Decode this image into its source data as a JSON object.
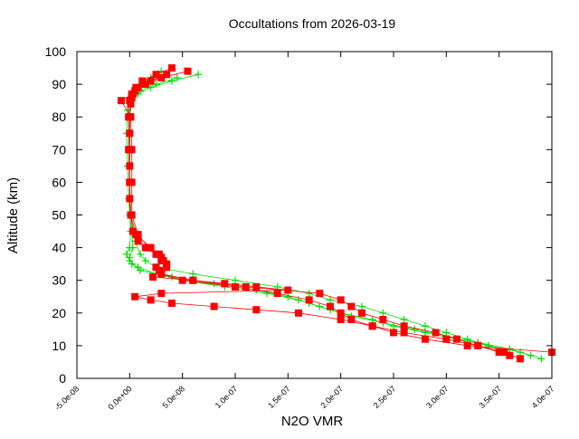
{
  "chart_data": {
    "type": "line",
    "title": "Occultations from 2026-03-19",
    "xlabel": "N2O VMR",
    "ylabel": "Altitude (km)",
    "xlim": [
      -5e-08,
      4e-07
    ],
    "xticks": [
      {
        "value": -5e-08,
        "label": "-5.0e-08"
      },
      {
        "value": 0,
        "label": "0.0e+00"
      },
      {
        "value": 5e-08,
        "label": "5.0e-08"
      },
      {
        "value": 1e-07,
        "label": "1.0e-07"
      },
      {
        "value": 1.5e-07,
        "label": "1.5e-07"
      },
      {
        "value": 2e-07,
        "label": "2.0e-07"
      },
      {
        "value": 2.5e-07,
        "label": "2.5e-07"
      },
      {
        "value": 3e-07,
        "label": "3.0e-07"
      },
      {
        "value": 3.5e-07,
        "label": "3.5e-07"
      },
      {
        "value": 4e-07,
        "label": "4.0e-07"
      }
    ],
    "ylim": [
      0,
      100
    ],
    "yticks": [
      0,
      10,
      20,
      30,
      40,
      50,
      60,
      70,
      80,
      90,
      100
    ],
    "series": [
      {
        "color": "#00dd00",
        "marker": "plus",
        "x": [
          6.5e-08,
          4e-08,
          2e-08,
          8e-09,
          2e-09,
          0,
          -1e-09,
          0,
          0,
          2e-09,
          3e-09,
          0,
          2e-09,
          1e-08,
          4e-08,
          8e-08,
          1.2e-07,
          1.5e-07,
          1.7e-07,
          1.9e-07,
          2.1e-07,
          2.4e-07,
          2.7e-07,
          3e-07,
          3.3e-07,
          3.6e-07,
          3.8e-07
        ],
        "values": [
          93,
          91,
          89,
          87,
          85,
          80,
          70,
          60,
          50,
          45,
          40,
          37,
          35,
          33,
          31,
          29,
          27,
          25,
          23,
          21,
          19,
          17,
          15,
          13,
          11,
          9,
          7
        ]
      },
      {
        "color": "#00dd00",
        "marker": "plus",
        "x": [
          3e-08,
          2e-08,
          1e-08,
          4e-09,
          0,
          -2e-09,
          -3e-09,
          -2e-09,
          -1e-09,
          1e-09,
          0,
          -3e-09,
          0,
          8e-09,
          2.5e-08,
          5e-08,
          9e-08,
          1.3e-07,
          1.6e-07,
          1.8e-07,
          2e-07,
          2.3e-07,
          2.5e-07,
          2.8e-07,
          3.1e-07,
          3.4e-07,
          3.7e-07,
          3.9e-07
        ],
        "values": [
          94,
          92,
          90,
          88,
          86,
          82,
          75,
          65,
          55,
          45,
          40,
          38,
          36,
          34,
          32,
          30,
          28,
          26,
          24,
          22,
          20,
          18,
          16,
          14,
          12,
          10,
          8,
          6
        ]
      },
      {
        "color": "#00dd00",
        "marker": "plus",
        "x": [
          4.5e-08,
          2.5e-08,
          1e-08,
          2e-09,
          0,
          0,
          0,
          1e-09,
          5e-09,
          1e-08,
          1.5e-08,
          2.5e-08,
          6e-08,
          1e-07,
          1.4e-07,
          1.7e-07,
          1.9e-07,
          2.2e-07,
          2.4e-07,
          2.6e-07,
          2.8e-07,
          3e-07,
          3.2e-07,
          3.4e-07,
          3.55e-07,
          3.7e-07
        ],
        "values": [
          92,
          90,
          88,
          85,
          80,
          70,
          60,
          50,
          42,
          38,
          36,
          34,
          32,
          30,
          28,
          26,
          24,
          22,
          20,
          18,
          16,
          14,
          12,
          10,
          8,
          6
        ]
      },
      {
        "color": "#ff0000",
        "marker": "square",
        "x": [
          5.5e-08,
          3e-08,
          1.5e-08,
          5e-09,
          2e-09,
          1e-09,
          0,
          0,
          0,
          0,
          0,
          0,
          1e-09,
          3e-09,
          8e-09,
          1.5e-08,
          2.5e-08,
          3e-08,
          3.5e-08,
          3e-08,
          6e-08,
          1.1e-07,
          1.8e-07,
          2e-07,
          2.1e-07,
          2.2e-07,
          2.4e-07,
          2.6e-07,
          2.9e-07,
          3.1e-07,
          3.3e-07,
          3.5e-07,
          3.6e-07
        ],
        "values": [
          94,
          92,
          90,
          88,
          86,
          84,
          80,
          75,
          70,
          65,
          60,
          55,
          50,
          45,
          42,
          40,
          38,
          36,
          34,
          32,
          30,
          28,
          26,
          24,
          22,
          20,
          18,
          16,
          14,
          12,
          10,
          8,
          7
        ]
      },
      {
        "color": "#ff0000",
        "marker": "square",
        "x": [
          4e-08,
          2.5e-08,
          1.2e-08,
          6e-09,
          2e-09,
          0,
          -1e-09,
          -1e-09,
          0,
          1e-09,
          6e-09,
          2e-08,
          3e-08,
          3.5e-08,
          2.8e-08,
          2.2e-08,
          6e-08,
          9e-08,
          1.2e-07,
          1.5e-07,
          3e-08,
          5e-09,
          2e-08,
          4e-08,
          8e-08,
          1.2e-07,
          1.6e-07,
          2e-07,
          2.3e-07,
          2.6e-07,
          3e-07,
          3.3e-07,
          3.55e-07,
          3.7e-07
        ],
        "values": [
          95,
          93,
          91,
          89,
          87,
          85,
          80,
          70,
          60,
          50,
          44,
          40,
          37,
          35,
          33,
          31,
          30,
          29,
          28,
          27,
          26,
          25,
          24,
          23,
          22,
          21,
          20,
          18,
          16,
          14,
          12,
          10,
          8,
          6
        ]
      },
      {
        "color": "#ff0000",
        "marker": "square",
        "x": [
          3.5e-08,
          2e-08,
          8e-09,
          3e-09,
          -8e-09,
          1e-09,
          2e-09,
          2e-09,
          2e-09,
          8e-09,
          1.8e-08,
          2.8e-08,
          3.2e-08,
          2.5e-08,
          3e-08,
          5e-08,
          1e-07,
          1.4e-07,
          1.7e-07,
          1.9e-07,
          2e-07,
          2.1e-07,
          2.3e-07,
          2.5e-07,
          2.8e-07,
          3.2e-07,
          4e-07
        ],
        "values": [
          93,
          91,
          89,
          87,
          85,
          80,
          70,
          60,
          50,
          44,
          40,
          38,
          36,
          34,
          32,
          30,
          28,
          26,
          24,
          22,
          20,
          18,
          16,
          14,
          12,
          10,
          8
        ]
      }
    ]
  }
}
